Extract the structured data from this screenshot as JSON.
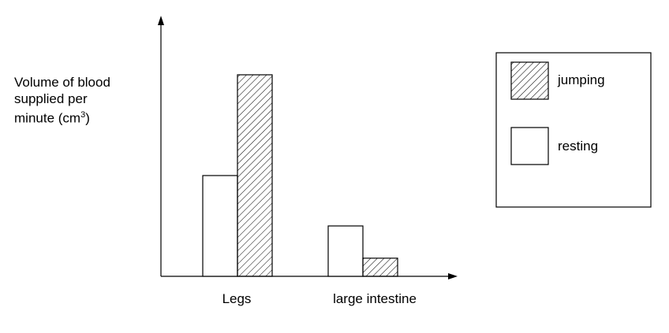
{
  "chart_data": {
    "type": "bar",
    "categories": [
      "Legs",
      "large intestine"
    ],
    "series": [
      {
        "name": "resting",
        "values": [
          50,
          25
        ],
        "fill": "plain"
      },
      {
        "name": "jumping",
        "values": [
          100,
          9
        ],
        "fill": "hatched"
      }
    ],
    "ylabel_lines": [
      "Volume of blood",
      "supplied per",
      "minute (cm"
    ],
    "ylabel_superscript": "3",
    "ylabel_suffix": ")",
    "xlabel": "",
    "ylim": [
      0,
      125
    ],
    "grid": false,
    "legend_position": "right",
    "legend_order": [
      "jumping",
      "resting"
    ],
    "colors": {
      "stroke": "#000000",
      "background": "#ffffff"
    }
  }
}
